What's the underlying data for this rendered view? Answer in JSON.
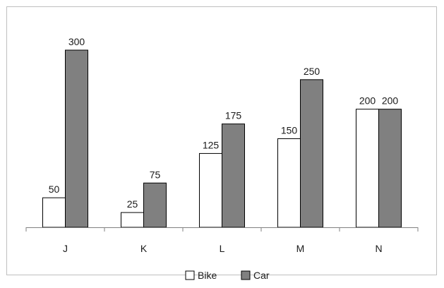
{
  "chart_data": {
    "type": "bar",
    "title": "",
    "xlabel": "",
    "ylabel": "",
    "categories": [
      "J",
      "K",
      "L",
      "M",
      "N"
    ],
    "series": [
      {
        "name": "Bike",
        "values": [
          50,
          25,
          125,
          150,
          200
        ],
        "color": "#ffffff",
        "stroke": "#000000"
      },
      {
        "name": "Car",
        "values": [
          300,
          75,
          175,
          250,
          200
        ],
        "color": "#808080",
        "stroke": "#000000"
      }
    ],
    "ylim": [
      0,
      300
    ],
    "grid": false,
    "data_labels": true,
    "legend_position": "bottom"
  }
}
